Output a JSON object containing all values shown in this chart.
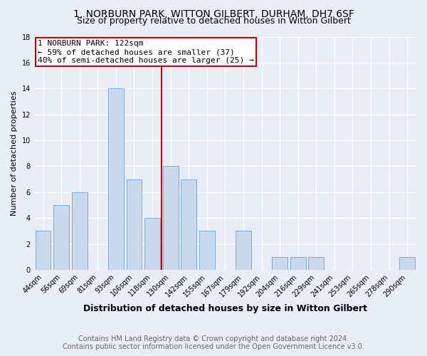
{
  "title": "1, NORBURN PARK, WITTON GILBERT, DURHAM, DH7 6SF",
  "subtitle": "Size of property relative to detached houses in Witton Gilbert",
  "xlabel": "Distribution of detached houses by size in Witton Gilbert",
  "ylabel": "Number of detached properties",
  "footnote1": "Contains HM Land Registry data © Crown copyright and database right 2024.",
  "footnote2": "Contains public sector information licensed under the Open Government Licence v3.0.",
  "categories": [
    "44sqm",
    "56sqm",
    "69sqm",
    "81sqm",
    "93sqm",
    "106sqm",
    "118sqm",
    "130sqm",
    "142sqm",
    "155sqm",
    "167sqm",
    "179sqm",
    "192sqm",
    "204sqm",
    "216sqm",
    "229sqm",
    "241sqm",
    "253sqm",
    "265sqm",
    "278sqm",
    "290sqm"
  ],
  "values": [
    3,
    5,
    6,
    0,
    14,
    7,
    4,
    8,
    7,
    3,
    0,
    3,
    0,
    1,
    1,
    1,
    0,
    0,
    0,
    0,
    1
  ],
  "bar_color": "#c9d9ed",
  "bar_edge_color": "#7dacd4",
  "annotation_line0": "1 NORBURN PARK: 122sqm",
  "annotation_line1": "← 59% of detached houses are smaller (37)",
  "annotation_line2": "40% of semi-detached houses are larger (25) →",
  "annotation_box_color": "#ffffff",
  "annotation_box_edge": "#cc0000",
  "vline_color": "#cc0000",
  "ylim": [
    0,
    18
  ],
  "yticks": [
    0,
    2,
    4,
    6,
    8,
    10,
    12,
    14,
    16,
    18
  ],
  "background_color": "#e8eef8",
  "plot_background": "#e8eef8",
  "grid_color": "#ffffff",
  "title_fontsize": 10,
  "subtitle_fontsize": 9,
  "xlabel_fontsize": 9,
  "ylabel_fontsize": 8,
  "tick_fontsize": 7,
  "annotation_fontsize": 8,
  "footnote_fontsize": 7
}
